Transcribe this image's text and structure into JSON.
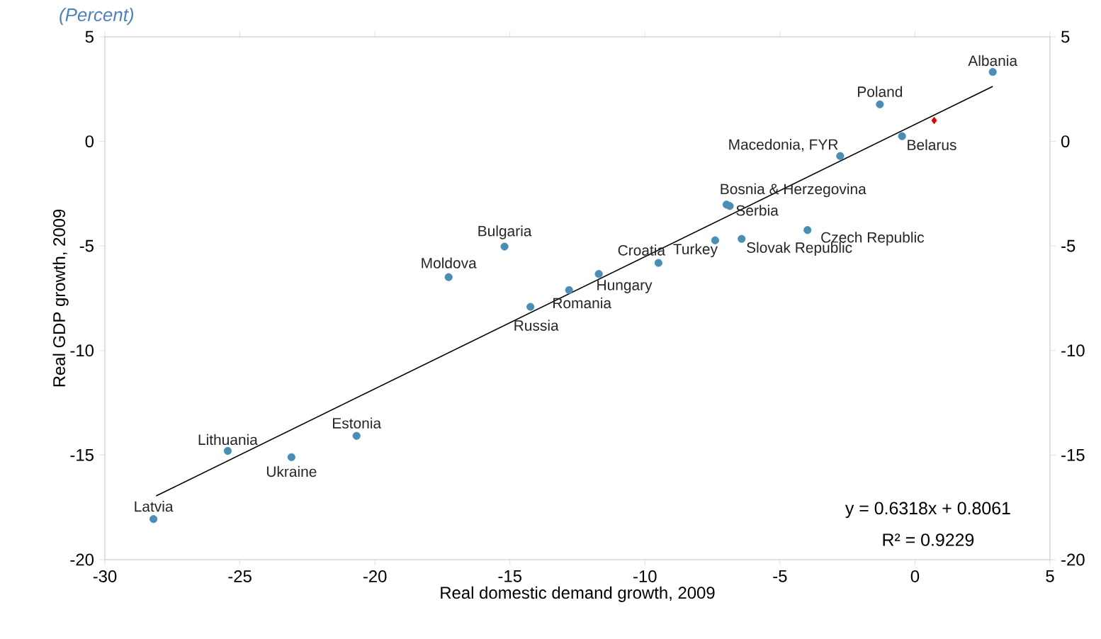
{
  "chart_data": {
    "type": "scatter",
    "subtitle": "(Percent)",
    "xlabel": "Real domestic demand growth, 2009",
    "ylabel": "Real GDP growth, 2009",
    "xlim": [
      -30,
      5
    ],
    "xticks": [
      -30,
      -25,
      -20,
      -15,
      -10,
      -5,
      0,
      5
    ],
    "ylim": [
      -20,
      5
    ],
    "yticks": [
      -20,
      -15,
      -10,
      -5,
      0,
      5
    ],
    "y2lim": [
      -20,
      5
    ],
    "y2ticks": [
      -20,
      -15,
      -10,
      -5,
      0,
      5
    ],
    "series": [
      {
        "type": "scatter",
        "color": "#4a8db5",
        "marker": "circle",
        "x": [
          2.88,
          -1.3,
          -0.48,
          -2.77,
          -6.98,
          -6.86,
          -3.98,
          -6.42,
          -7.4,
          -9.5,
          -15.2,
          -17.27,
          -11.71,
          -12.81,
          -14.24,
          -25.45,
          -23.09,
          -20.68,
          -28.2
        ],
        "values": [
          3.32,
          1.77,
          0.25,
          -0.7,
          -3.02,
          -3.09,
          -4.24,
          -4.66,
          -4.73,
          -5.81,
          -5.03,
          -6.49,
          -6.34,
          -7.11,
          -7.91,
          -14.8,
          -15.1,
          -14.08,
          -18.06
        ]
      },
      {
        "type": "scatter",
        "color": "#e00000",
        "marker": "diamond",
        "x": [
          0.71
        ],
        "values": [
          1.0
        ]
      },
      {
        "type": "line",
        "color": "#000000",
        "marker": "none",
        "x": [
          -28.1,
          2.88
        ],
        "values": [
          -16.95,
          2.63
        ]
      }
    ],
    "annotations": [
      {
        "text": "Albania",
        "x": 2.88,
        "y": 3.32
      },
      {
        "text": "Poland",
        "x": -1.3,
        "y": 1.77
      },
      {
        "text": "Belarus",
        "x": -0.48,
        "y": 0.25
      },
      {
        "text": "Macedonia, FYR",
        "x": -2.77,
        "y": -0.7
      },
      {
        "text": "Bosnia & Herzegovina",
        "x": -6.98,
        "y": -3.02
      },
      {
        "text": "Serbia",
        "x": -6.86,
        "y": -3.09
      },
      {
        "text": "Czech Republic",
        "x": -3.98,
        "y": -4.24
      },
      {
        "text": "Slovak Republic",
        "x": -6.42,
        "y": -4.66
      },
      {
        "text": "Turkey",
        "x": -7.4,
        "y": -4.73
      },
      {
        "text": "Croatia",
        "x": -9.5,
        "y": -5.81
      },
      {
        "text": "Bulgaria",
        "x": -15.2,
        "y": -5.03
      },
      {
        "text": "Moldova",
        "x": -17.27,
        "y": -6.49
      },
      {
        "text": "Hungary",
        "x": -11.71,
        "y": -6.34
      },
      {
        "text": "Romania",
        "x": -12.81,
        "y": -7.11
      },
      {
        "text": "Russia",
        "x": -14.24,
        "y": -7.91
      },
      {
        "text": "Lithuania",
        "x": -25.45,
        "y": -14.8
      },
      {
        "text": "Ukraine",
        "x": -23.09,
        "y": -15.1
      },
      {
        "text": "Estonia",
        "x": -20.68,
        "y": -14.08
      },
      {
        "text": "Latvia",
        "x": -28.2,
        "y": -18.06
      },
      "y = 0.6318x + 0.8061",
      "R² = 0.9229"
    ]
  }
}
